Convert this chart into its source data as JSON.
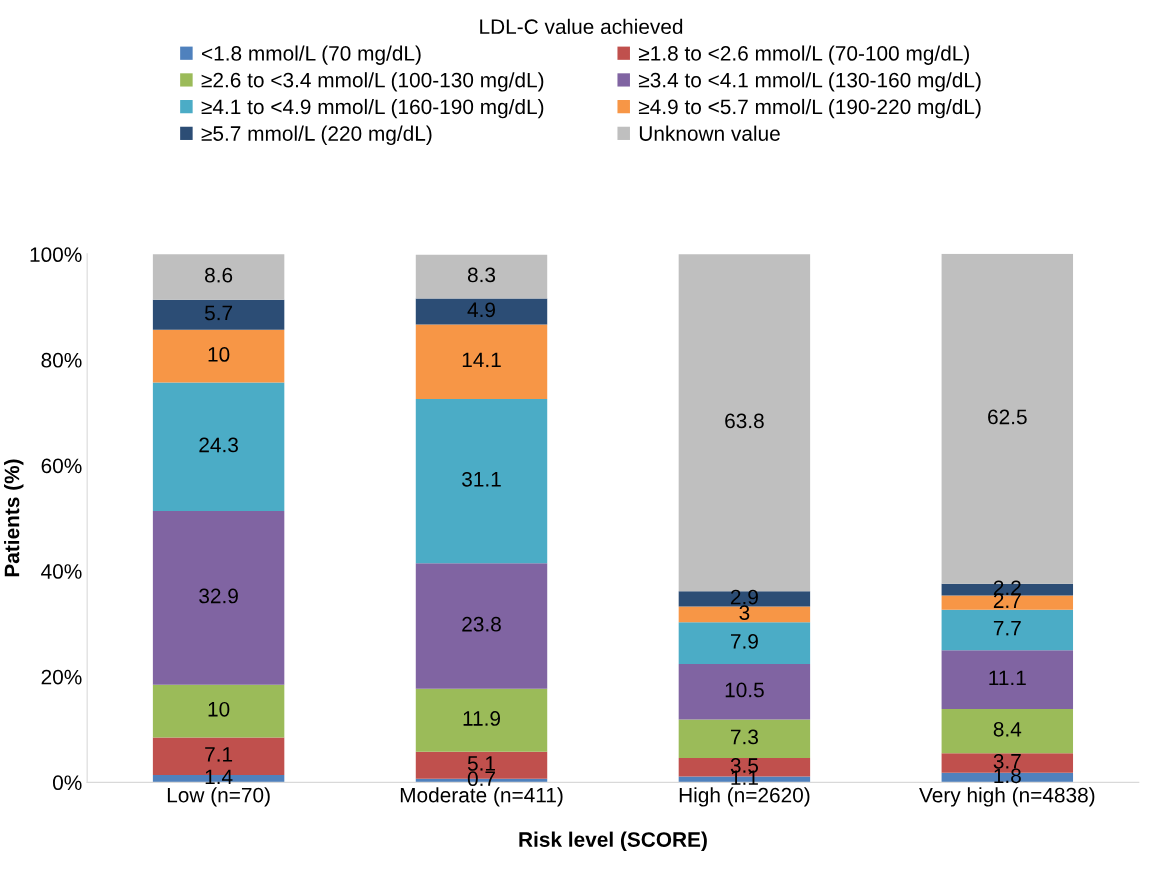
{
  "chart_data": {
    "type": "bar",
    "stacked": true,
    "legend_title": "LDL-C value achieved",
    "legend": "top",
    "xlabel": "Risk level (SCORE)",
    "ylabel": "Patients (%)",
    "categories": [
      "Low (n=70)",
      "Moderate (n=411)",
      "High (n=2620)",
      "Very high (n=4838)"
    ],
    "series": [
      {
        "name": "<1.8 mmol/L (70 mg/dL)",
        "color": "#4f81bd",
        "values": [
          1.4,
          0.7,
          1.1,
          1.8
        ]
      },
      {
        "name": "≥1.8 to <2.6 mmol/L (70-100 mg/dL)",
        "color": "#c0504d",
        "values": [
          7.1,
          5.1,
          3.5,
          3.7
        ]
      },
      {
        "name": "≥2.6 to <3.4 mmol/L (100-130 mg/dL)",
        "color": "#9bbb59",
        "values": [
          10,
          11.9,
          7.3,
          8.4
        ]
      },
      {
        "name": "≥3.4 to <4.1 mmol/L (130-160 mg/dL)",
        "color": "#8064a2",
        "values": [
          32.9,
          23.8,
          10.5,
          11.1
        ]
      },
      {
        "name": "≥4.1 to <4.9 mmol/L (160-190 mg/dL)",
        "color": "#4bacc6",
        "values": [
          24.3,
          31.1,
          7.9,
          7.7
        ]
      },
      {
        "name": "≥4.9 to <5.7 mmol/L (190-220 mg/dL)",
        "color": "#f79646",
        "values": [
          10,
          14.1,
          3,
          2.7
        ]
      },
      {
        "name": "≥5.7 mmol/L (220 mg/dL)",
        "color": "#2c4d75",
        "values": [
          5.7,
          4.9,
          2.9,
          2.2
        ]
      },
      {
        "name": "Unknown value",
        "color": "#bfbfbf",
        "values": [
          8.6,
          8.3,
          63.8,
          62.5
        ]
      }
    ],
    "ylim": [
      0,
      100.1
    ],
    "yticks": [
      {
        "value": 0,
        "label": "0%"
      },
      {
        "value": 20,
        "label": "20%"
      },
      {
        "value": 40,
        "label": "40%"
      },
      {
        "value": 60,
        "label": "60%"
      },
      {
        "value": 80,
        "label": "80%"
      },
      {
        "value": 100,
        "label": "100%"
      }
    ],
    "data_labels": true,
    "grid": false
  }
}
